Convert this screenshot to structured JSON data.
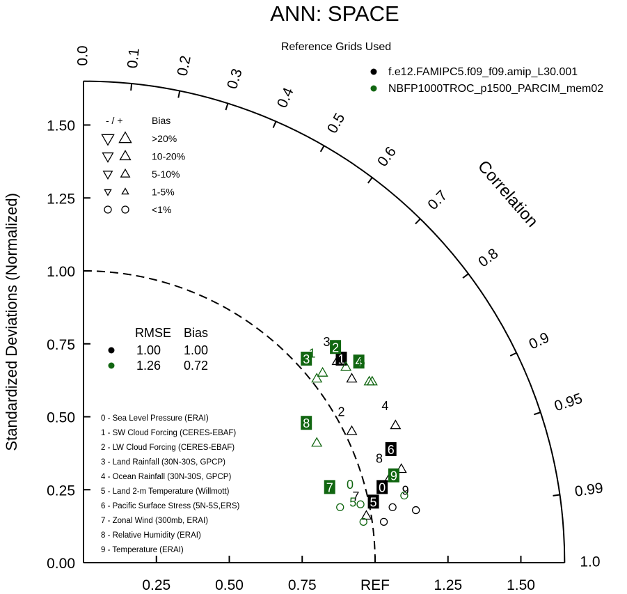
{
  "chart_data": {
    "type": "scatter",
    "title": "ANN: SPACE",
    "subtitle": "Reference Grids Used",
    "ylabel": "Standardized Deviations (Normalized)",
    "arc_label": "Correlation",
    "ref_label": "REF",
    "ylim": [
      0,
      1.65
    ],
    "y_ticks": [
      "0.00",
      "0.25",
      "0.50",
      "0.75",
      "1.00",
      "1.25",
      "1.50"
    ],
    "x_ticks": [
      "0.25",
      "0.50",
      "0.75",
      "1.25",
      "1.50"
    ],
    "correlation_ticks": [
      "0.0",
      "0.1",
      "0.2",
      "0.3",
      "0.4",
      "0.5",
      "0.6",
      "0.7",
      "0.8",
      "0.9",
      "0.95",
      "0.99",
      "1.0"
    ],
    "grid": false,
    "series": [
      {
        "name": "f.e12.FAMIPC5.f09_f09.amip_L30.001",
        "color": "#000000",
        "rmse": "1.00",
        "bias": "1.00",
        "points": [
          {
            "id": "0",
            "x": 1.06,
            "y": 0.19,
            "marker": "circle"
          },
          {
            "id": "1",
            "x": 0.92,
            "y": 0.63,
            "marker": "triangle-up"
          },
          {
            "id": "2",
            "x": 0.92,
            "y": 0.45,
            "marker": "triangle-up"
          },
          {
            "id": "3",
            "x": 0.87,
            "y": 0.69,
            "marker": "triangle-up"
          },
          {
            "id": "4",
            "x": 1.07,
            "y": 0.47,
            "marker": "triangle-up"
          },
          {
            "id": "5",
            "x": 1.03,
            "y": 0.14,
            "marker": "circle"
          },
          {
            "id": "6",
            "x": 1.09,
            "y": 0.32,
            "marker": "triangle-up"
          },
          {
            "id": "7",
            "x": 0.97,
            "y": 0.16,
            "marker": "triangle-up"
          },
          {
            "id": "8",
            "x": 1.05,
            "y": 0.29,
            "marker": "triangle-up"
          },
          {
            "id": "9",
            "x": 1.14,
            "y": 0.18,
            "marker": "circle"
          }
        ]
      },
      {
        "name": "NBFP1000TROC_p1500_PARCIM_mem02",
        "color": "#116611",
        "rmse": "1.26",
        "bias": "0.72",
        "points": [
          {
            "id": "0",
            "x": 0.95,
            "y": 0.2,
            "marker": "circle"
          },
          {
            "id": "1",
            "x": 0.82,
            "y": 0.65,
            "marker": "triangle-up"
          },
          {
            "id": "2",
            "x": 0.9,
            "y": 0.67,
            "marker": "triangle-up"
          },
          {
            "id": "3",
            "x": 0.8,
            "y": 0.63,
            "marker": "triangle-up"
          },
          {
            "id": "4",
            "x": 0.98,
            "y": 0.62,
            "marker": "triangle-up"
          },
          {
            "id": "5",
            "x": 0.96,
            "y": 0.14,
            "marker": "circle"
          },
          {
            "id": "6",
            "x": 0.99,
            "y": 0.62,
            "marker": "triangle-up"
          },
          {
            "id": "7",
            "x": 0.88,
            "y": 0.19,
            "marker": "circle"
          },
          {
            "id": "8",
            "x": 0.8,
            "y": 0.41,
            "marker": "triangle-up"
          },
          {
            "id": "9",
            "x": 1.1,
            "y": 0.23,
            "marker": "circle"
          }
        ]
      }
    ],
    "bias_legend": {
      "header_sign": "- / +",
      "header_bias": "Bias",
      "rows": [
        ">20%",
        "10-20%",
        "5-10%",
        "1-5%",
        "<1%"
      ]
    },
    "stats_legend": {
      "header_rmse": "RMSE",
      "header_bias": "Bias"
    },
    "variables": [
      "0 - Sea Level Pressure (ERAI)",
      "1 - SW Cloud Forcing (CERES-EBAF)",
      "2 - LW Cloud Forcing (CERES-EBAF)",
      "3 - Land Rainfall (30N-30S, GPCP)",
      "4 - Ocean Rainfall (30N-30S, GPCP)",
      "5 - Land 2-m Temperature (Willmott)",
      "6 - Pacific Surface Stress (5N-5S,ERS)",
      "7 - Zonal Wind (300mb, ERAI)",
      "8 - Relative Humidity (ERAI)",
      "9 - Temperature (ERAI)"
    ]
  }
}
